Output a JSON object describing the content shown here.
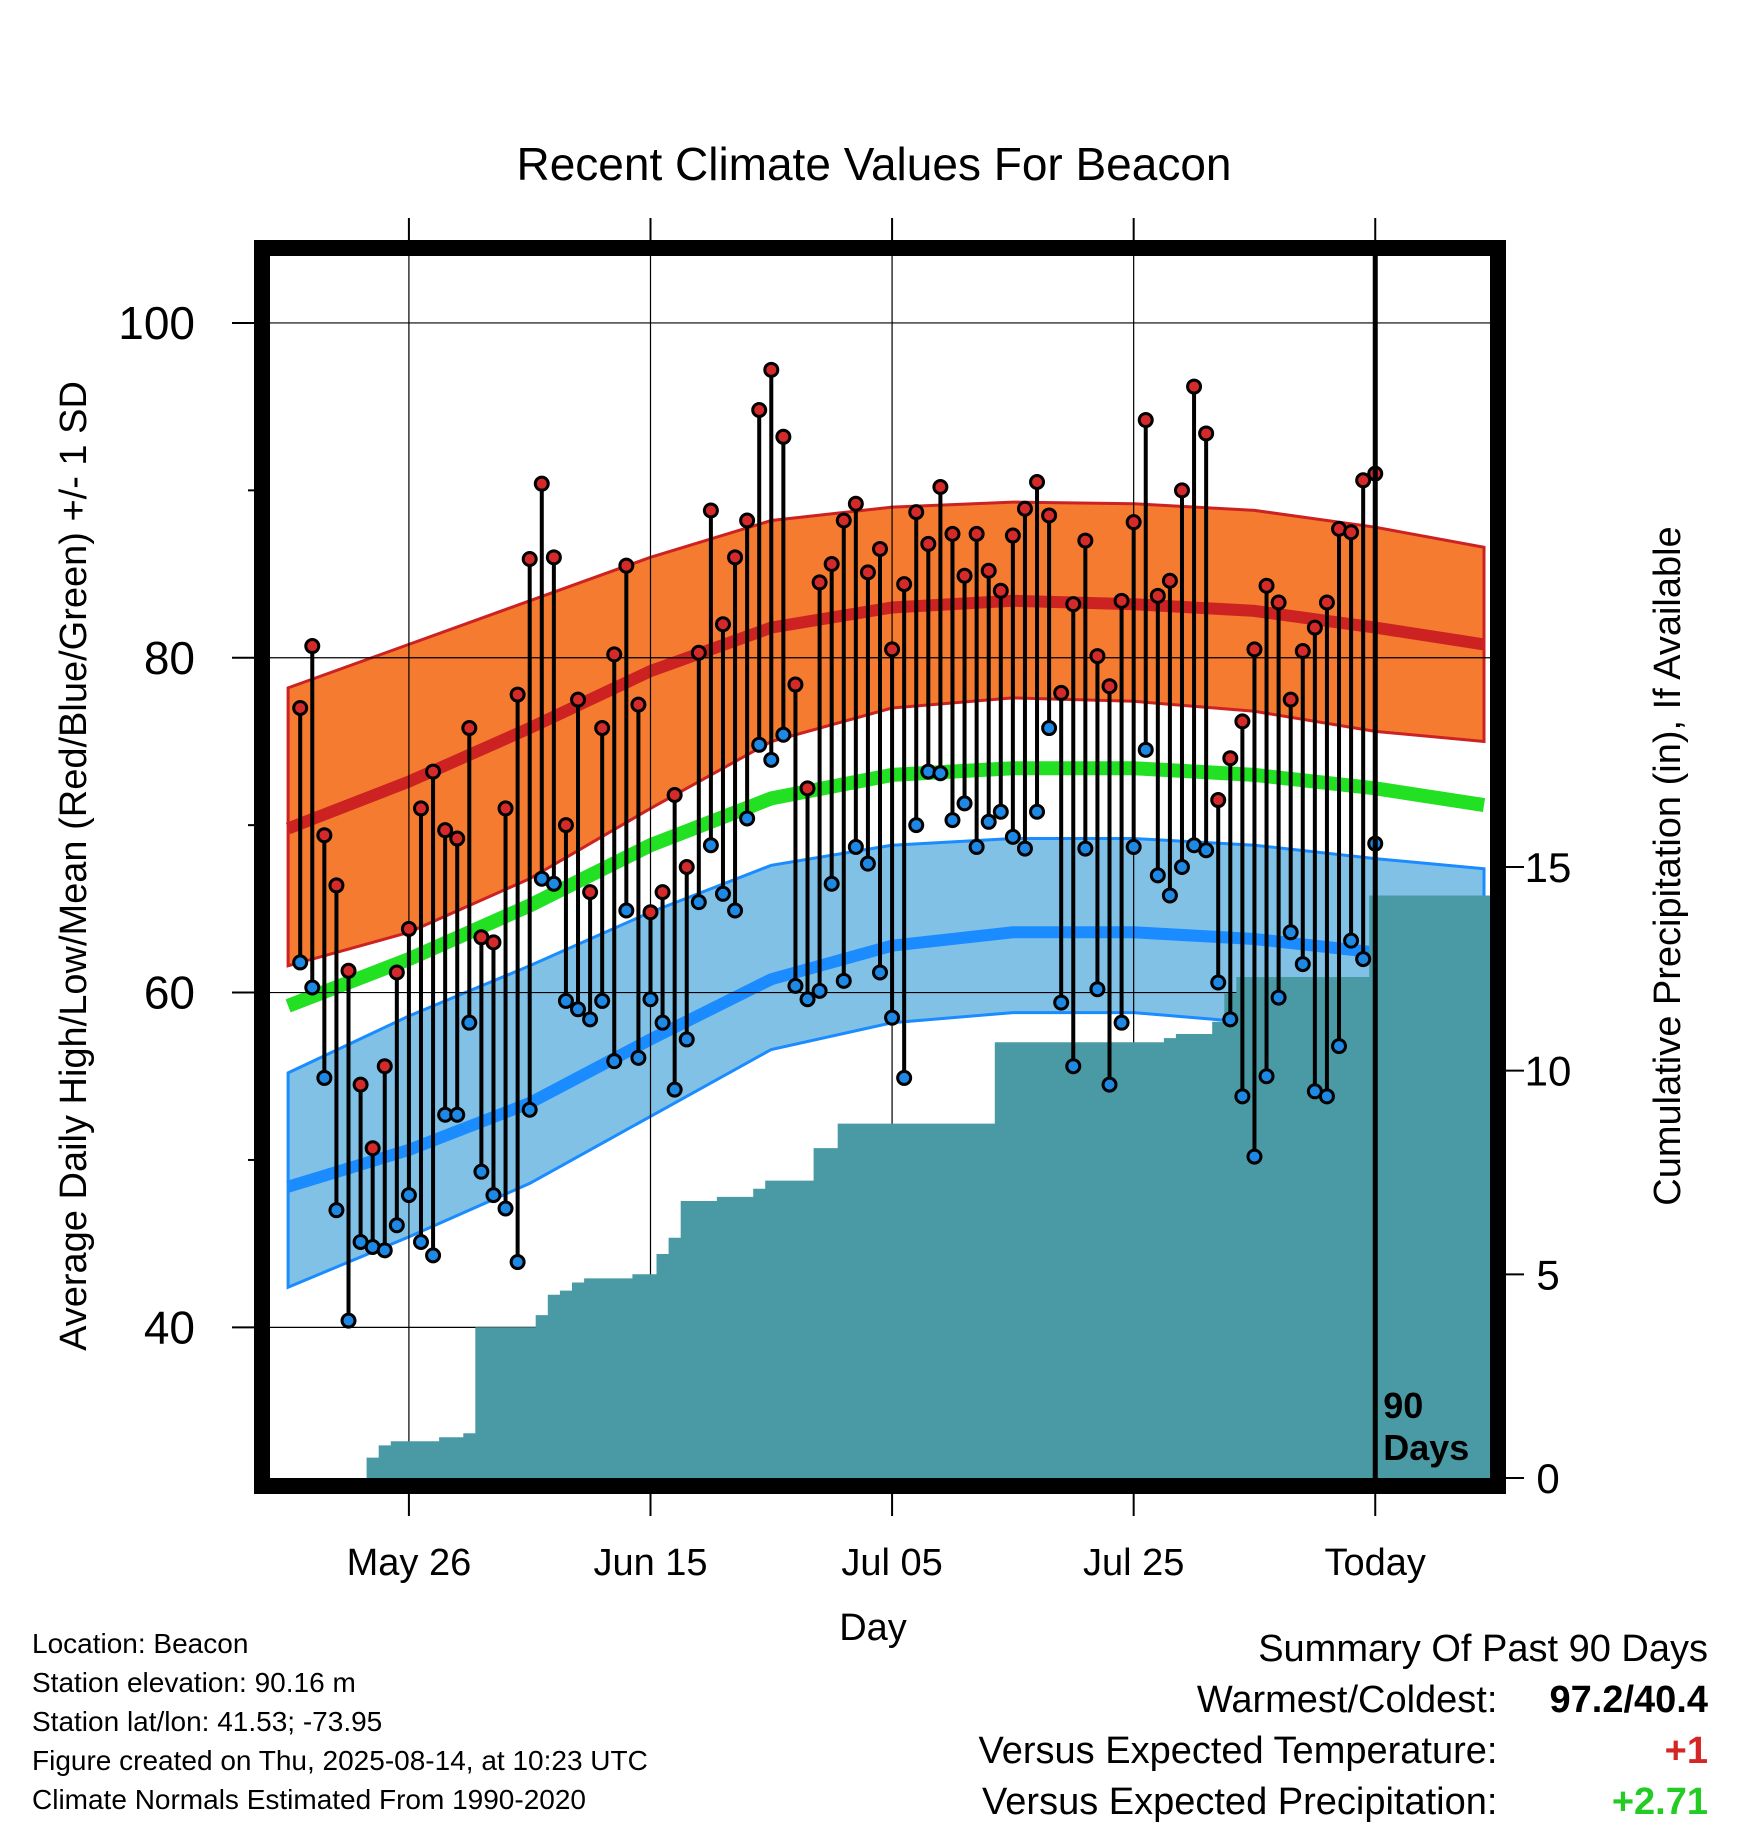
{
  "title": "Recent Climate Values For Beacon",
  "colors": {
    "high_band": "#f47b30",
    "high_mean": "#cc2222",
    "low_band": "#82c1e6",
    "low_mean": "#1a8cff",
    "mean": "#22e022",
    "precip": "#4a9aa5",
    "frame": "#000000"
  },
  "info": {
    "location": "Location: Beacon",
    "elevation": "Station elevation: 90.16 m",
    "latlon": "Station lat/lon: 41.53; -73.95",
    "created": "Figure created on Thu, 2025-08-14, at 10:23 UTC",
    "normals": "Climate Normals Estimated From 1990-2020"
  },
  "summary": {
    "title": "Summary Of Past 90 Days",
    "warm_label": "Warmest/Coldest:",
    "warm_value": "97.2/40.4",
    "temp_label": "Versus Expected Temperature:",
    "temp_value": "+1",
    "precip_label": "Versus Expected Precipitation:",
    "precip_value": "+2.71"
  },
  "chart_data": {
    "type": "line",
    "title": "Recent Climate Values For Beacon",
    "xlabel": "Day",
    "ylabel": "Average Daily High/Low/Mean (Red/Blue/Green) +/- 1 SD",
    "y2label": "Cumulative Precipitation (in), If Available",
    "x_tick_labels": [
      "May 26",
      "Jun 15",
      "Jul 05",
      "Jul 25",
      "Today"
    ],
    "x_tick_days": [
      -80,
      -60,
      -40,
      -20,
      0
    ],
    "xlim": [
      -91.5,
      9.5
    ],
    "ylim": [
      31,
      104
    ],
    "y_ticks": [
      40,
      60,
      80,
      100
    ],
    "y2lim": [
      0,
      30
    ],
    "y2_ticks": [
      0,
      5,
      10,
      15
    ],
    "today_label": "90\nDays",
    "normals": {
      "day": [
        -90,
        -80,
        -70,
        -60,
        -50,
        -40,
        -30,
        -20,
        -10,
        0,
        9
      ],
      "high_mean": [
        69.8,
        72.6,
        75.8,
        79.2,
        81.8,
        83.0,
        83.4,
        83.2,
        82.8,
        81.8,
        80.8
      ],
      "high_sd_upper": [
        78.2,
        80.8,
        83.4,
        86.0,
        88.2,
        89.0,
        89.3,
        89.2,
        88.8,
        87.8,
        86.6
      ],
      "high_sd_lower": [
        61.6,
        63.6,
        66.8,
        71.0,
        75.0,
        77.0,
        77.6,
        77.4,
        76.8,
        75.6,
        75.0
      ],
      "mean": [
        59.2,
        62.0,
        65.2,
        68.8,
        71.6,
        73.0,
        73.4,
        73.4,
        73.0,
        72.2,
        71.2
      ],
      "low_mean": [
        48.4,
        50.6,
        53.4,
        57.2,
        60.8,
        62.8,
        63.6,
        63.6,
        63.2,
        62.4,
        61.4
      ],
      "low_sd_upper": [
        55.2,
        58.6,
        61.6,
        64.8,
        67.6,
        68.8,
        69.2,
        69.2,
        68.8,
        68.0,
        67.4
      ],
      "low_sd_lower": [
        42.4,
        45.4,
        48.6,
        52.6,
        56.6,
        58.2,
        58.8,
        58.8,
        58.2,
        57.4,
        55.8
      ]
    },
    "series": [
      {
        "name": "High",
        "values": [
          77.0,
          80.7,
          69.4,
          66.4,
          61.3,
          54.5,
          50.7,
          55.6,
          61.2,
          63.8,
          71.0,
          73.2,
          69.7,
          69.2,
          75.8,
          63.3,
          63.0,
          71.0,
          77.8,
          85.9,
          90.4,
          86.0,
          70.0,
          77.5,
          66.0,
          75.8,
          80.2,
          85.5,
          77.2,
          64.8,
          66.0,
          71.8,
          67.5,
          80.3,
          88.8,
          82.0,
          86.0,
          88.2,
          94.8,
          97.2,
          93.2,
          78.4,
          72.2,
          84.5,
          85.6,
          88.2,
          89.2,
          85.1,
          86.5,
          80.5,
          84.4,
          88.7,
          86.8,
          90.2,
          87.4,
          84.9,
          87.4,
          85.2,
          84.0,
          87.3,
          88.9,
          90.5,
          88.5,
          77.9,
          83.2,
          87.0,
          80.1,
          78.3,
          83.4,
          88.1,
          94.2,
          83.7,
          84.6,
          90.0,
          96.2,
          93.4,
          71.5,
          74.0,
          76.2,
          80.5,
          84.3,
          83.3,
          77.5,
          80.4,
          81.8,
          83.3,
          87.7,
          87.5,
          90.6,
          91.0
        ]
      },
      {
        "name": "Low",
        "values": [
          61.8,
          60.3,
          54.9,
          47.0,
          40.4,
          45.1,
          44.8,
          44.6,
          46.1,
          47.9,
          45.1,
          44.3,
          52.7,
          52.7,
          58.2,
          49.3,
          47.9,
          47.1,
          43.9,
          53.0,
          66.8,
          66.5,
          59.5,
          59.0,
          58.4,
          59.5,
          55.9,
          64.9,
          56.1,
          59.6,
          58.2,
          54.2,
          57.2,
          65.4,
          68.8,
          65.9,
          64.9,
          70.4,
          74.8,
          73.9,
          75.4,
          60.4,
          59.6,
          60.1,
          66.5,
          60.7,
          68.7,
          67.7,
          61.2,
          58.5,
          54.9,
          70.0,
          73.2,
          73.1,
          70.3,
          71.3,
          68.7,
          70.2,
          70.8,
          69.3,
          68.6,
          70.8,
          75.8,
          59.4,
          55.6,
          68.6,
          60.2,
          54.5,
          58.2,
          68.7,
          74.5,
          67.0,
          65.8,
          67.5,
          68.8,
          68.5,
          60.6,
          58.4,
          53.8,
          50.2,
          55.0,
          59.7,
          63.6,
          61.7,
          54.1,
          53.8,
          56.8,
          63.1,
          62.0,
          68.9
        ]
      },
      {
        "name": "Cumulative Precipitation",
        "values": [
          0.0,
          0.0,
          0.0,
          0.0,
          0.0,
          0.0,
          0.5,
          0.8,
          0.9,
          0.9,
          0.9,
          0.9,
          1.0,
          1.0,
          1.1,
          3.7,
          3.7,
          3.7,
          3.7,
          3.7,
          4.0,
          4.5,
          4.6,
          4.8,
          4.9,
          4.9,
          4.9,
          4.9,
          5.0,
          5.0,
          5.5,
          5.9,
          6.8,
          6.8,
          6.8,
          6.9,
          6.9,
          6.9,
          7.1,
          7.3,
          7.3,
          7.3,
          7.3,
          8.1,
          8.1,
          8.7,
          8.7,
          8.7,
          8.7,
          8.7,
          8.7,
          8.7,
          8.7,
          8.7,
          8.7,
          8.7,
          8.7,
          8.7,
          10.7,
          10.7,
          10.7,
          10.7,
          10.7,
          10.7,
          10.7,
          10.7,
          10.7,
          10.7,
          10.7,
          10.7,
          10.7,
          10.7,
          10.8,
          10.9,
          10.9,
          10.9,
          11.2,
          11.9,
          12.3,
          12.3,
          12.3,
          12.3,
          12.3,
          12.3,
          12.3,
          12.3,
          12.3,
          12.3,
          12.3,
          14.3
        ]
      }
    ]
  }
}
